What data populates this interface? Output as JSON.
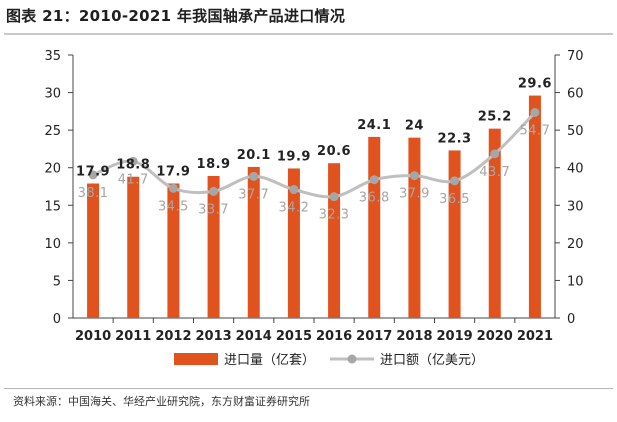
{
  "title": "图表 21：2010-2021 年我国轴承产品进口情况",
  "source": "资料来源：中国海关、华经产业研究院，东方财富证券研究所",
  "colors": {
    "bar": "#e0521e",
    "line": "#bfbfbf",
    "marker": "#a6a6a6",
    "axis": "#444444"
  },
  "chart_data": {
    "type": "bar",
    "categories": [
      "2010",
      "2011",
      "2012",
      "2013",
      "2014",
      "2015",
      "2016",
      "2017",
      "2018",
      "2019",
      "2020",
      "2021"
    ],
    "series": [
      {
        "name": "进口量（亿套）",
        "type": "bar",
        "axis": "left",
        "values": [
          17.9,
          18.8,
          17.9,
          18.9,
          20.1,
          19.9,
          20.6,
          24.1,
          24,
          22.3,
          25.2,
          29.6
        ],
        "labels": [
          "17.9",
          "18.8",
          "17.9",
          "18.9",
          "20.1",
          "19.9",
          "20.6",
          "24.1",
          "24",
          "22.3",
          "25.2",
          "29.6"
        ]
      },
      {
        "name": "进口额（亿美元）",
        "type": "line",
        "axis": "right",
        "values": [
          38.1,
          41.7,
          34.5,
          33.7,
          37.7,
          34.2,
          32.3,
          36.8,
          37.9,
          36.5,
          43.7,
          54.7
        ],
        "labels": [
          "38.1",
          "41.7",
          "34.5",
          "33.7",
          "37.7",
          "34.2",
          "32.3",
          "36.8",
          "37.9",
          "36.5",
          "43.7",
          "54.7"
        ]
      }
    ],
    "y_left": {
      "ylim": [
        0,
        35
      ],
      "ticks": [
        "0",
        "5",
        "10",
        "15",
        "20",
        "25",
        "30",
        "35"
      ]
    },
    "y_right": {
      "ylim": [
        0,
        70
      ],
      "ticks": [
        "0",
        "10",
        "20",
        "30",
        "40",
        "50",
        "60",
        "70"
      ]
    },
    "grid": false,
    "legend_position": "bottom"
  }
}
